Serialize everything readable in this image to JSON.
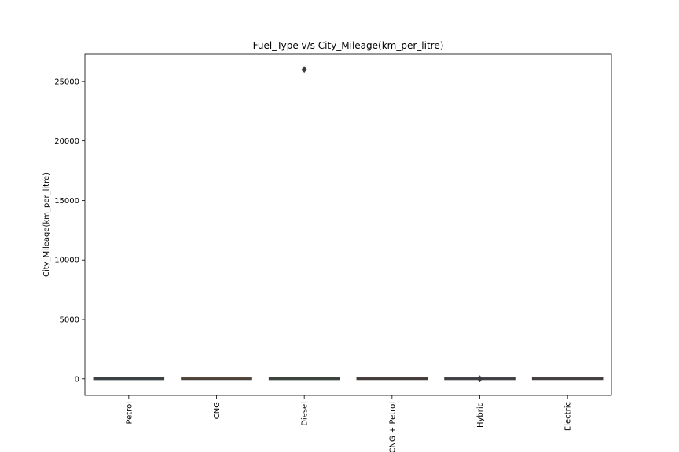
{
  "chart_data": {
    "type": "box",
    "title": "Fuel_Type v/s City_Mileage(km_per_litre)",
    "xlabel": "",
    "ylabel": "City_Mileage(km_per_litre)",
    "ylim": [
      -1400,
      27300
    ],
    "yticks": [
      0,
      5000,
      10000,
      15000,
      20000,
      25000
    ],
    "grid": false,
    "categories": [
      "Petrol",
      "CNG",
      "Diesel",
      "CNG + Petrol",
      "Hybrid",
      "Electric"
    ],
    "boxes": [
      {
        "category": "Petrol",
        "min": 10,
        "q1": 14,
        "median": 17,
        "q3": 20,
        "max": 28
      },
      {
        "category": "CNG",
        "min": 20,
        "q1": 22,
        "median": 25,
        "q3": 28,
        "max": 32
      },
      {
        "category": "Diesel",
        "min": 12,
        "q1": 15,
        "median": 18,
        "q3": 21,
        "max": 27
      },
      {
        "category": "CNG + Petrol",
        "min": 18,
        "q1": 20,
        "median": 22,
        "q3": 24,
        "max": 26
      },
      {
        "category": "Hybrid",
        "min": 15,
        "q1": 18,
        "median": 20,
        "q3": 23,
        "max": 30
      },
      {
        "category": "Electric",
        "min": 20,
        "q1": 22,
        "median": 24,
        "q3": 26,
        "max": 28
      }
    ],
    "outliers": [
      {
        "category": "Diesel",
        "value": 26000
      },
      {
        "category": "Hybrid",
        "value": 0
      }
    ],
    "colors": {
      "axes": "#000000",
      "box_edge": "#3d3d3d",
      "outlier": "#3d3d3d",
      "boxes": [
        "#3274a1",
        "#e1812c",
        "#3a923a",
        "#c03d3e",
        "#9372b2",
        "#845b53"
      ]
    }
  }
}
